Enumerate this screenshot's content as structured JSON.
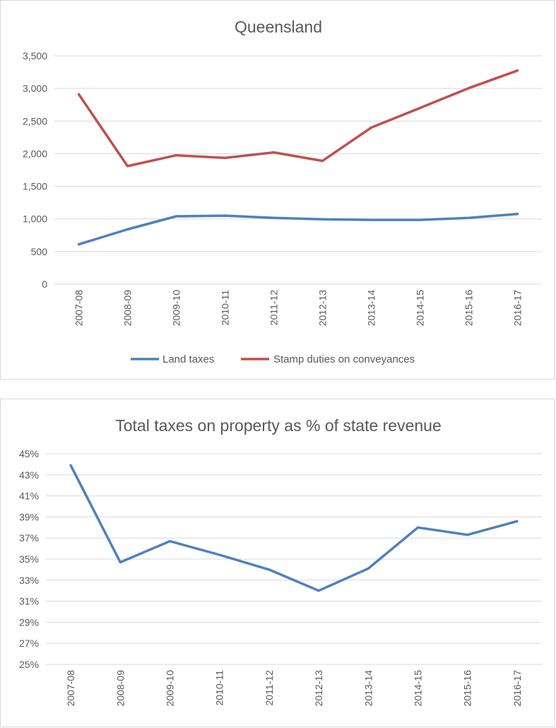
{
  "chart_data": [
    {
      "type": "line",
      "title": "Queensland",
      "categories": [
        "2007-08",
        "2008-09",
        "2009-10",
        "2010-11",
        "2011-12",
        "2012-13",
        "2013-14",
        "2014-15",
        "2015-16",
        "2016-17"
      ],
      "series": [
        {
          "name": "Land taxes",
          "color": "#4f81bd",
          "values": [
            610,
            840,
            1040,
            1050,
            1015,
            995,
            985,
            985,
            1015,
            1075
          ]
        },
        {
          "name": "Stamp duties on conveyances",
          "color": "#c0504d",
          "values": [
            2910,
            1810,
            1975,
            1935,
            2020,
            1890,
            2400,
            2700,
            3005,
            3275
          ]
        }
      ],
      "ylim": [
        0,
        3500
      ],
      "yticks": [
        0,
        500,
        1000,
        1500,
        2000,
        2500,
        3000,
        3500
      ],
      "ytick_labels": [
        "0",
        "500",
        "1,000",
        "1,500",
        "2,000",
        "2,500",
        "3,000",
        "3,500"
      ],
      "legend": "bottom",
      "grid": true
    },
    {
      "type": "line",
      "title": "Total taxes on property as % of state revenue",
      "categories": [
        "2007-08",
        "2008-09",
        "2009-10",
        "2010-11",
        "2011-12",
        "2012-13",
        "2013-14",
        "2014-15",
        "2015-16",
        "2016-17"
      ],
      "series": [
        {
          "name": "Total taxes on property",
          "color": "#4f81bd",
          "values": [
            43.9,
            34.7,
            36.7,
            35.4,
            34.0,
            32.0,
            34.1,
            38.0,
            37.3,
            38.6
          ]
        }
      ],
      "ylim": [
        25,
        45
      ],
      "yticks": [
        25,
        27,
        29,
        31,
        33,
        35,
        37,
        39,
        41,
        43,
        45
      ],
      "ytick_labels": [
        "25%",
        "27%",
        "29%",
        "31%",
        "33%",
        "35%",
        "37%",
        "39%",
        "41%",
        "43%",
        "45%"
      ],
      "legend": "none",
      "grid": true
    }
  ]
}
